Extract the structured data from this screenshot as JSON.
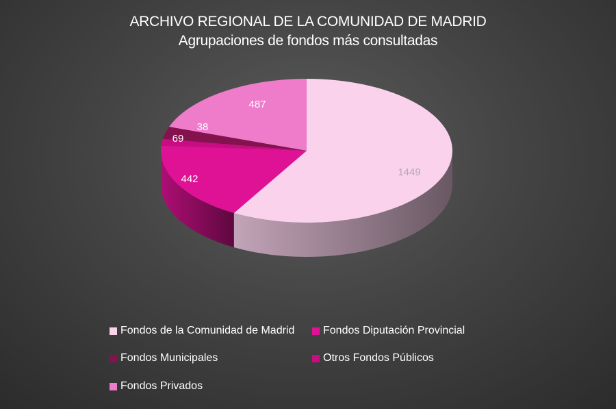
{
  "colors": {
    "background": "#444444",
    "Fondos de la Comunidad de Madrid": "#fad2ec",
    "Fondos Diputación Provincial": "#df1296",
    "Fondos Municipales": "#84124f",
    "Otros Fondos Públicos": "#c80d83",
    "Fondos Privados": "#ef7ccb"
  },
  "chart_data": {
    "type": "pie",
    "title": "ARCHIVO REGIONAL DE LA COMUNIDAD DE MADRID",
    "subtitle": "Agrupaciones de fondos más consultadas",
    "style": "3d",
    "categories": [
      "Fondos de la Comunidad de Madrid",
      "Fondos Diputación Provincial",
      "Fondos Municipales",
      "Otros Fondos Públicos",
      "Fondos Privados"
    ],
    "values": [
      1449,
      442,
      69,
      38,
      487
    ],
    "data_labels": [
      "1449",
      "442",
      "69",
      "38",
      "487"
    ],
    "legend_position": "bottom"
  }
}
